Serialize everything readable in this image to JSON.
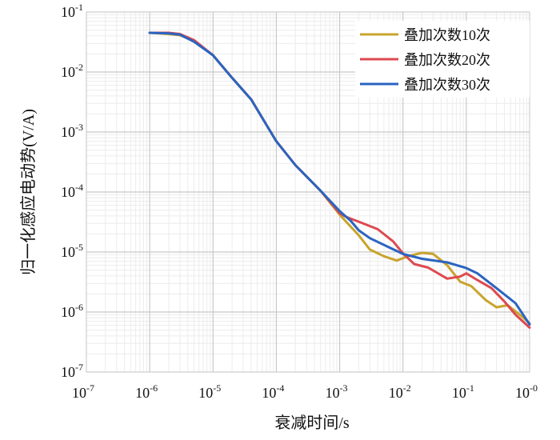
{
  "chart_data": {
    "type": "line",
    "xlabel": "衰减时间/s",
    "ylabel": "归一化感应电动势(V/A)",
    "xscale": "log",
    "yscale": "log",
    "xlim": [
      1e-07,
      1
    ],
    "ylim": [
      1e-07,
      0.1
    ],
    "grid": true,
    "legend_position": "top-right",
    "x_tick_labels": [
      {
        "base": "10",
        "exp": "-7"
      },
      {
        "base": "10",
        "exp": "-6"
      },
      {
        "base": "10",
        "exp": "-5"
      },
      {
        "base": "10",
        "exp": "-4"
      },
      {
        "base": "10",
        "exp": "-3"
      },
      {
        "base": "10",
        "exp": "-2"
      },
      {
        "base": "10",
        "exp": "-1"
      },
      {
        "base": "10",
        "exp": "-0"
      }
    ],
    "y_tick_labels": [
      {
        "base": "10",
        "exp": "-1"
      },
      {
        "base": "10",
        "exp": "-2"
      },
      {
        "base": "10",
        "exp": "-3"
      },
      {
        "base": "10",
        "exp": "-4"
      },
      {
        "base": "10",
        "exp": "-5"
      },
      {
        "base": "10",
        "exp": "-6"
      },
      {
        "base": "10",
        "exp": "-7"
      }
    ],
    "series": [
      {
        "name": "叠加次数10次",
        "color": "#c8a42c",
        "points": [
          [
            1e-06,
            0.045
          ],
          [
            2e-06,
            0.043
          ],
          [
            3e-06,
            0.041
          ],
          [
            5e-06,
            0.033
          ],
          [
            1e-05,
            0.019
          ],
          [
            2e-05,
            0.008
          ],
          [
            4e-05,
            0.0035
          ],
          [
            0.0001,
            0.0007
          ],
          [
            0.0002,
            0.00028
          ],
          [
            0.0005,
            0.000105
          ],
          [
            0.001,
            4.2e-05
          ],
          [
            0.0013,
            3.1e-05
          ],
          [
            0.002,
            1.9e-05
          ],
          [
            0.003,
            1.1e-05
          ],
          [
            0.005,
            8.5e-06
          ],
          [
            0.008,
            7.2e-06
          ],
          [
            0.012,
            8.5e-06
          ],
          [
            0.02,
            9.7e-06
          ],
          [
            0.03,
            9.3e-06
          ],
          [
            0.05,
            6e-06
          ],
          [
            0.08,
            3.2e-06
          ],
          [
            0.12,
            2.7e-06
          ],
          [
            0.2,
            1.6e-06
          ],
          [
            0.3,
            1.2e-06
          ],
          [
            0.45,
            1.3e-06
          ],
          [
            0.7,
            9e-07
          ],
          [
            1,
            6.5e-07
          ]
        ]
      },
      {
        "name": "叠加次数20次",
        "color": "#dd4a50",
        "points": [
          [
            1e-06,
            0.045
          ],
          [
            2e-06,
            0.045
          ],
          [
            3e-06,
            0.043
          ],
          [
            5e-06,
            0.034
          ],
          [
            1e-05,
            0.019
          ],
          [
            2e-05,
            0.008
          ],
          [
            4e-05,
            0.0035
          ],
          [
            0.0001,
            0.0007
          ],
          [
            0.0002,
            0.00028
          ],
          [
            0.0005,
            0.000105
          ],
          [
            0.001,
            4.4e-05
          ],
          [
            0.0013,
            3.8e-05
          ],
          [
            0.002,
            3.2e-05
          ],
          [
            0.004,
            2.4e-05
          ],
          [
            0.007,
            1.5e-05
          ],
          [
            0.01,
            9.5e-06
          ],
          [
            0.015,
            6.3e-06
          ],
          [
            0.025,
            5.5e-06
          ],
          [
            0.05,
            3.6e-06
          ],
          [
            0.08,
            3.9e-06
          ],
          [
            0.1,
            4.4e-06
          ],
          [
            0.15,
            3.4e-06
          ],
          [
            0.25,
            2.5e-06
          ],
          [
            0.4,
            1.5e-06
          ],
          [
            0.6,
            9e-07
          ],
          [
            1,
            5.5e-07
          ]
        ]
      },
      {
        "name": "叠加次数30次",
        "color": "#2b64c0",
        "points": [
          [
            1e-06,
            0.045
          ],
          [
            2e-06,
            0.044
          ],
          [
            3e-06,
            0.042
          ],
          [
            5e-06,
            0.032
          ],
          [
            1e-05,
            0.019
          ],
          [
            2e-05,
            0.008
          ],
          [
            4e-05,
            0.0035
          ],
          [
            0.0001,
            0.0007
          ],
          [
            0.0002,
            0.00028
          ],
          [
            0.0005,
            0.000105
          ],
          [
            0.001,
            4.8e-05
          ],
          [
            0.0015,
            3.3e-05
          ],
          [
            0.002,
            2.3e-05
          ],
          [
            0.003,
            1.7e-05
          ],
          [
            0.006,
            1.2e-05
          ],
          [
            0.01,
            9.3e-06
          ],
          [
            0.02,
            7.7e-06
          ],
          [
            0.05,
            6.7e-06
          ],
          [
            0.1,
            5.4e-06
          ],
          [
            0.15,
            4.4e-06
          ],
          [
            0.3,
            2.5e-06
          ],
          [
            0.6,
            1.4e-06
          ],
          [
            1,
            6.2e-07
          ]
        ]
      }
    ]
  }
}
